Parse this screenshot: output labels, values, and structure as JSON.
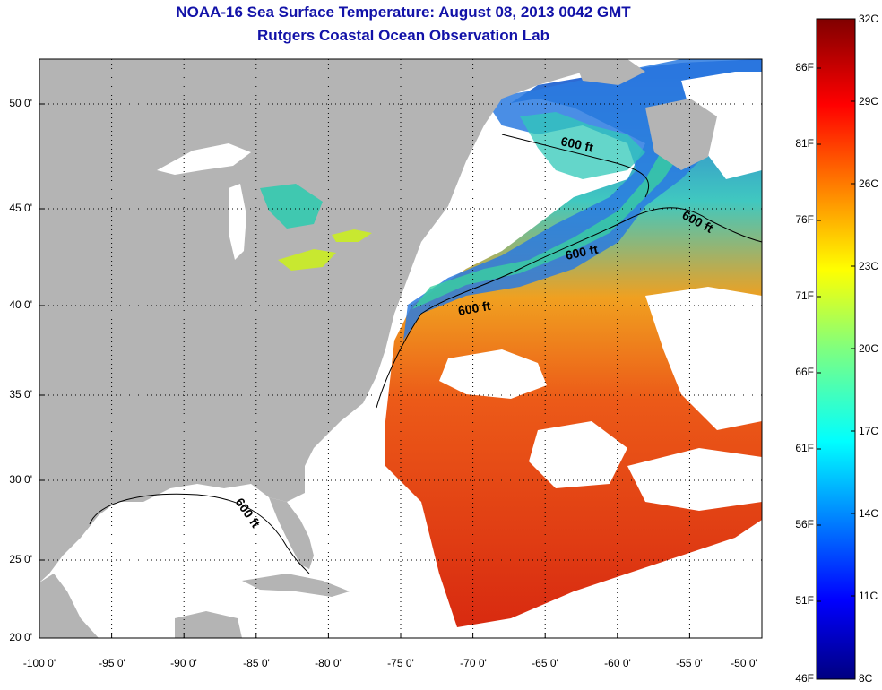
{
  "title": "NOAA-16 Sea Surface Temperature:  August 08, 2013 0042 GMT",
  "subtitle": "Rutgers Coastal Ocean Observation Lab",
  "y_ticks": [
    "50 0'",
    "45 0'",
    "40 0'",
    "35 0'",
    "30 0'",
    "25 0'",
    "20 0'"
  ],
  "x_ticks": [
    "-100 0'",
    "-95 0'",
    "-90 0'",
    "-85 0'",
    "-80 0'",
    "-75 0'",
    "-70 0'",
    "-65 0'",
    "-60 0'",
    "-55 0'",
    "-50 0'"
  ],
  "colorbar": {
    "fahrenheit": [
      "86F",
      "81F",
      "76F",
      "71F",
      "66F",
      "61F",
      "56F",
      "51F",
      "46F"
    ],
    "celsius": [
      "32C",
      "29C",
      "26C",
      "23C",
      "20C",
      "17C",
      "14C",
      "11C",
      "8C"
    ]
  },
  "contour_labels": [
    "600 ft",
    "600 ft",
    "600 ft",
    "600 ft",
    "600 ft"
  ],
  "colors": {
    "title": "#1212a8",
    "land": "#b4b4b4",
    "cloud": "#ffffff",
    "warm": "#e8401a",
    "cool": "#2a6ee8"
  }
}
